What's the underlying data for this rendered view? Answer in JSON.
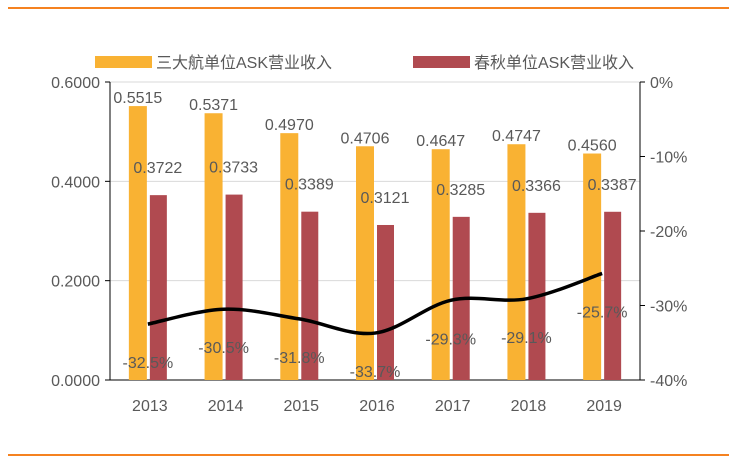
{
  "chart_data": {
    "type": "bar+line",
    "categories": [
      "2013",
      "2014",
      "2015",
      "2016",
      "2017",
      "2018",
      "2019"
    ],
    "series": [
      {
        "name": "三大航单位ASK营业收入",
        "type": "bar",
        "axis": "left",
        "color": "#F9B233",
        "values": [
          0.5515,
          0.5371,
          0.497,
          0.4706,
          0.4647,
          0.4747,
          0.456
        ],
        "labels": [
          "0.5515",
          "0.5371",
          "0.4970",
          "0.4706",
          "0.4647",
          "0.4747",
          "0.4560"
        ]
      },
      {
        "name": "春秋单位ASK营业收入",
        "type": "bar",
        "axis": "left",
        "color": "#B04A50",
        "values": [
          0.3722,
          0.3733,
          0.3389,
          0.3121,
          0.3285,
          0.3366,
          0.3387
        ],
        "labels": [
          "0.3722",
          "0.3733",
          "0.3389",
          "0.3121",
          "0.3285",
          "0.3366",
          "0.3387"
        ]
      },
      {
        "name": "",
        "type": "line",
        "axis": "right",
        "color": "#000000",
        "values": [
          -32.5,
          -30.5,
          -31.8,
          -33.7,
          -29.3,
          -29.1,
          -25.7
        ],
        "labels": [
          "-32.5%",
          "-30.5%",
          "-31.8%",
          "-33.7%",
          "-29.3%",
          "-29.1%",
          "-25.7%"
        ]
      }
    ],
    "left_axis": {
      "ylim": [
        0,
        0.6
      ],
      "ticks": [
        "0.0000",
        "0.2000",
        "0.4000",
        "0.6000"
      ]
    },
    "right_axis": {
      "ylim": [
        -40,
        0
      ],
      "ticks": [
        "-40%",
        "-30%",
        "-20%",
        "-10%",
        "0%"
      ]
    },
    "legend_placement": "top",
    "grid": true
  }
}
